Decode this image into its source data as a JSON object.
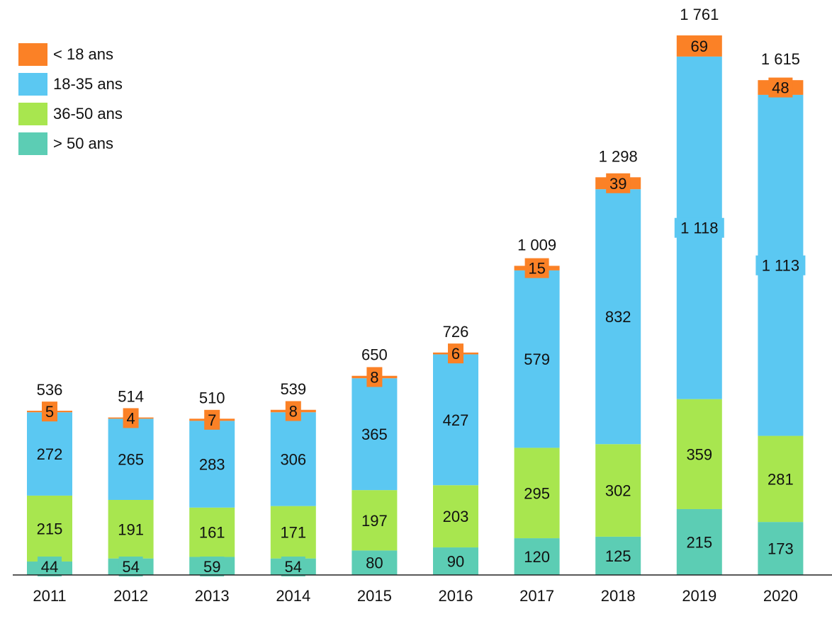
{
  "chart_data": {
    "type": "bar",
    "stacked": true,
    "title": "",
    "xlabel": "",
    "ylabel": "",
    "ylim": [
      0,
      1800
    ],
    "grid": false,
    "legend_position": "top-left",
    "categories": [
      "2011",
      "2012",
      "2013",
      "2014",
      "2015",
      "2016",
      "2017",
      "2018",
      "2019",
      "2020"
    ],
    "totals": [
      "536",
      "514",
      "510",
      "539",
      "650",
      "726",
      "1 009",
      "1 298",
      "1 761",
      "1 615"
    ],
    "total_values": [
      536,
      514,
      510,
      539,
      650,
      726,
      1009,
      1298,
      1761,
      1615
    ],
    "series": [
      {
        "name": "> 50 ans",
        "color": "#5ccdb4",
        "values": [
          44,
          54,
          59,
          54,
          80,
          90,
          120,
          125,
          215,
          173
        ],
        "labels": [
          "44",
          "54",
          "59",
          "54",
          "80",
          "90",
          "120",
          "125",
          "215",
          "173"
        ]
      },
      {
        "name": "36-50 ans",
        "color": "#a8e64f",
        "values": [
          215,
          191,
          161,
          171,
          197,
          203,
          295,
          302,
          359,
          281
        ],
        "labels": [
          "215",
          "191",
          "161",
          "171",
          "197",
          "203",
          "295",
          "302",
          "359",
          "281"
        ]
      },
      {
        "name": "18-35 ans",
        "color": "#5bc8f2",
        "values": [
          272,
          265,
          283,
          306,
          365,
          427,
          579,
          832,
          1118,
          1113
        ],
        "labels": [
          "272",
          "265",
          "283",
          "306",
          "365",
          "427",
          "579",
          "832",
          "1 118",
          "1 113"
        ]
      },
      {
        "name": "< 18 ans",
        "color": "#fb8126",
        "values": [
          5,
          4,
          7,
          8,
          8,
          6,
          15,
          39,
          69,
          48
        ],
        "labels": [
          "5",
          "4",
          "7",
          "8",
          "8",
          "6",
          "15",
          "39",
          "69",
          "48"
        ]
      }
    ]
  }
}
